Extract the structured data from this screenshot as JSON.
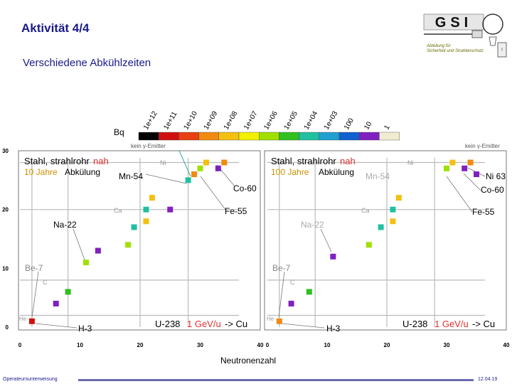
{
  "slide": {
    "title": "Aktivität  4/4",
    "subtitle": "Verschiedene Abkühlzeiten",
    "logo_text": "GSI",
    "logo_caption_1": "Abteilung für",
    "logo_caption_2": "Sicherheit und Strahlenschutz",
    "footer_left": "Operateursunterweisung",
    "footer_right": "12.04.19",
    "x_axis_label": "Neutronenzahl"
  },
  "legend": {
    "unit": "Bq",
    "labels": [
      "1e+12",
      "1e+11",
      "1e+10",
      "1e+09",
      "1e+08",
      "1e+07",
      "1e+06",
      "1e+05",
      "1e+04",
      "1e+03",
      "100",
      "10",
      "1"
    ],
    "colors": [
      "#000000",
      "#d01010",
      "#e84010",
      "#f08a10",
      "#f4c010",
      "#f0f000",
      "#a0e000",
      "#30c020",
      "#20c0a0",
      "#20a0d0",
      "#1060d0",
      "#8020c0",
      "#f0ecd0"
    ]
  },
  "panels": [
    {
      "title_line1_a": "Stahl, strahlrohr",
      "title_line1_b": "nah",
      "title_line2_a": "10 Jahre",
      "title_line2_b": "Abkülung",
      "gamma_note": "kein γ-Emitter",
      "labels": {
        "mn54": "Mn-54",
        "co60": "Co-60",
        "fe55": "Fe-55",
        "na22": "Na-22",
        "be7": "Be-7",
        "h3": "H-3",
        "ni": "Ni",
        "ca": "Ca",
        "c": "C",
        "he": "He"
      },
      "reaction_a": "U-238",
      "reaction_b": "1 GeV/u",
      "reaction_c": "-> Cu"
    },
    {
      "title_line1_a": "Stahl, strahlrohr",
      "title_line1_b": "nah",
      "title_line2_a": "100 Jahre",
      "title_line2_b": "Abkülung",
      "gamma_note": "kein γ-Emitter",
      "labels": {
        "mn54": "Mn-54",
        "co60": "Co-60",
        "fe55": "Fe-55",
        "na22": "Na-22",
        "be7": "Be-7",
        "h3": "H-3",
        "ni": "Ni",
        "ca": "Ca",
        "c": "C",
        "he": "He",
        "ni63": "Ni 63"
      },
      "reaction_a": "U-238",
      "reaction_b": "1 GeV/u",
      "reaction_c": "-> Cu"
    }
  ],
  "chart_data": [
    {
      "type": "scatter",
      "title": "Stahl, strahlrohrnah 10 Jahre Abkülung",
      "xlabel": "Neutronenzahl",
      "ylabel": "",
      "xlim": [
        0,
        40
      ],
      "ylim": [
        0,
        30
      ],
      "xticks": [
        0,
        10,
        20,
        30,
        40
      ],
      "yticks": [
        0,
        10,
        20,
        30
      ],
      "points": [
        {
          "x": 2,
          "y": 1,
          "color": "#d01010"
        },
        {
          "x": 6,
          "y": 4,
          "color": "#8020c0"
        },
        {
          "x": 8,
          "y": 6,
          "color": "#30c020"
        },
        {
          "x": 11,
          "y": 11,
          "color": "#a0e000"
        },
        {
          "x": 13,
          "y": 13,
          "color": "#8020c0"
        },
        {
          "x": 18,
          "y": 14,
          "color": "#a0e000"
        },
        {
          "x": 19,
          "y": 17,
          "color": "#20c0a0"
        },
        {
          "x": 21,
          "y": 18,
          "color": "#f4c010"
        },
        {
          "x": 21,
          "y": 20,
          "color": "#20c0a0"
        },
        {
          "x": 22,
          "y": 22,
          "color": "#f4c010"
        },
        {
          "x": 25,
          "y": 20,
          "color": "#8020c0"
        },
        {
          "x": 28,
          "y": 25,
          "color": "#20c0a0"
        },
        {
          "x": 29,
          "y": 26,
          "color": "#f08a10"
        },
        {
          "x": 30,
          "y": 27,
          "color": "#a0e000"
        },
        {
          "x": 31,
          "y": 28,
          "color": "#f4c010"
        },
        {
          "x": 33,
          "y": 27,
          "color": "#8020c0"
        },
        {
          "x": 34,
          "y": 28,
          "color": "#f08a10"
        }
      ]
    },
    {
      "type": "scatter",
      "title": "Stahl, strahlrohrnah 100 Jahre Abkülung",
      "xlabel": "Neutronenzahl",
      "ylabel": "",
      "xlim": [
        0,
        40
      ],
      "ylim": [
        0,
        30
      ],
      "xticks": [
        0,
        10,
        20,
        30,
        40
      ],
      "yticks": [
        0,
        10,
        20,
        30
      ],
      "points": [
        {
          "x": 2,
          "y": 1,
          "color": "#f08a10"
        },
        {
          "x": 4,
          "y": 4,
          "color": "#8020c0"
        },
        {
          "x": 7,
          "y": 6,
          "color": "#30c020"
        },
        {
          "x": 11,
          "y": 12,
          "color": "#8020c0"
        },
        {
          "x": 17,
          "y": 14,
          "color": "#a0e000"
        },
        {
          "x": 19,
          "y": 17,
          "color": "#20c0a0"
        },
        {
          "x": 21,
          "y": 18,
          "color": "#f4c010"
        },
        {
          "x": 21,
          "y": 20,
          "color": "#20c0a0"
        },
        {
          "x": 22,
          "y": 22,
          "color": "#f4c010"
        },
        {
          "x": 30,
          "y": 27,
          "color": "#a0e000"
        },
        {
          "x": 31,
          "y": 28,
          "color": "#f4c010"
        },
        {
          "x": 33,
          "y": 27,
          "color": "#8020c0"
        },
        {
          "x": 34,
          "y": 28,
          "color": "#f08a10"
        },
        {
          "x": 35,
          "y": 26,
          "color": "#8020c0"
        }
      ]
    }
  ]
}
